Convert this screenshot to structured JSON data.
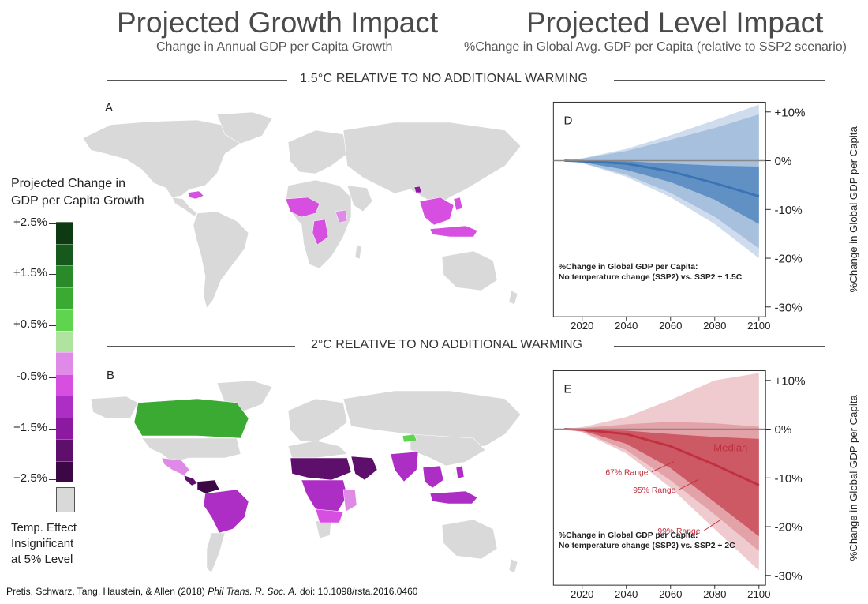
{
  "header": {
    "left_title": "Projected Growth Impact",
    "left_subtitle": "Change in Annual GDP per Capita Growth",
    "right_title": "Projected Level Impact",
    "right_subtitle": "%Change in Global Avg. GDP per Capita (relative to SSP2 scenario)"
  },
  "sections": {
    "top": "1.5°C RELATIVE TO NO ADDITIONAL WARMING",
    "bottom": "2°C RELATIVE TO NO ADDITIONAL WARMING"
  },
  "maps": {
    "a_label": "A",
    "b_label": "B"
  },
  "legend": {
    "title_line1": "Projected Change in",
    "title_line2": "GDP per Capita Growth",
    "ticks": [
      "+2.5%",
      "+1.5%",
      "+0.5%",
      "-0.5%",
      "−1.5%",
      "−2.5%"
    ],
    "colors": [
      "#0d3a12",
      "#17591c",
      "#2a8a2a",
      "#3aaa33",
      "#5fd44e",
      "#b0e3a0",
      "#e08ae8",
      "#d64fe0",
      "#ad2ec4",
      "#8b1aa0",
      "#5e0f6b",
      "#3b0845"
    ],
    "insig_color": "#d9d9d9",
    "insig_line1": "Temp. Effect",
    "insig_line2": "Insignificant",
    "insig_line3": "at 5% Level"
  },
  "citation": {
    "authors": "Pretis, Schwarz, Tang, Haustein, & Allen (2018) ",
    "journal": "Phil Trans. R. Soc. A.",
    "doi": " doi: 10.1098/rsta.2016.0460"
  },
  "chart_data": [
    {
      "type": "area",
      "panel": "D",
      "title": "%Change in Global GDP per Capita:",
      "subtitle": "No temperature change (SSP2) vs. SSP2 + 1.5C",
      "ylabel": "%Change in Global GDP per Capita",
      "xlim": [
        2007,
        2103
      ],
      "ylim": [
        -32,
        12
      ],
      "x_ticks": [
        2020,
        2040,
        2060,
        2080,
        2100
      ],
      "y_ticks": [
        10,
        0,
        -10,
        -20,
        -30
      ],
      "y_tick_labels": [
        "+10%",
        "0%",
        "-10%",
        "-20%",
        "-30%"
      ],
      "color": "#3a74b5",
      "x": [
        2012,
        2020,
        2040,
        2060,
        2080,
        2100
      ],
      "series": [
        {
          "name": "99% Range",
          "upper": [
            0,
            0.5,
            2.4,
            5.2,
            8.3,
            11.5
          ],
          "lower": [
            0,
            -0.5,
            -3.3,
            -7.5,
            -13.0,
            -20.0
          ]
        },
        {
          "name": "95% Range",
          "upper": [
            0,
            0.4,
            2.0,
            4.3,
            6.7,
            9.5
          ],
          "lower": [
            0,
            -0.45,
            -2.9,
            -6.6,
            -11.5,
            -18.0
          ]
        },
        {
          "name": "67% Range",
          "upper": [
            0,
            0.05,
            -0.1,
            -0.6,
            -1.0,
            -1.2
          ],
          "lower": [
            0,
            -0.3,
            -1.9,
            -4.4,
            -8.0,
            -13.0
          ]
        },
        {
          "name": "Median",
          "values": [
            0,
            -0.1,
            -0.6,
            -2.2,
            -4.6,
            -7.3
          ]
        }
      ],
      "baseline": 0,
      "annotations": []
    },
    {
      "type": "area",
      "panel": "E",
      "title": "%Change in Global GDP per Capita:",
      "subtitle": "No temperature change (SSP2) vs. SSP2 + 2C",
      "ylabel": "%Change in Global GDP per Capita",
      "xlim": [
        2007,
        2103
      ],
      "ylim": [
        -32,
        12
      ],
      "x_ticks": [
        2020,
        2040,
        2060,
        2080,
        2100
      ],
      "y_ticks": [
        10,
        0,
        -10,
        -20,
        -30
      ],
      "y_tick_labels": [
        "+10%",
        "0%",
        "-10%",
        "-20%",
        "-30%"
      ],
      "color": "#c0303e",
      "x": [
        2012,
        2020,
        2040,
        2060,
        2080,
        2100
      ],
      "series": [
        {
          "name": "99% Range",
          "upper": [
            0,
            0.4,
            2.5,
            6.0,
            10.0,
            11.5
          ],
          "lower": [
            0,
            -0.6,
            -5.0,
            -12.0,
            -20.5,
            -29.0
          ]
        },
        {
          "name": "95% Range",
          "upper": [
            0,
            0.2,
            1.0,
            1.5,
            1.2,
            0.5
          ],
          "lower": [
            0,
            -0.5,
            -4.3,
            -10.5,
            -17.5,
            -25.0
          ]
        },
        {
          "name": "67% Range",
          "upper": [
            0,
            -0.05,
            -0.3,
            -1.0,
            -1.6,
            -2.0
          ],
          "lower": [
            0,
            -0.3,
            -3.0,
            -8.0,
            -15.0,
            -22.0
          ]
        },
        {
          "name": "Median",
          "values": [
            0,
            -0.1,
            -1.0,
            -3.5,
            -7.3,
            -11.5
          ]
        }
      ],
      "baseline": 0,
      "annotations": [
        "Median",
        "67% Range",
        "95% Range",
        "99% Range"
      ]
    }
  ]
}
